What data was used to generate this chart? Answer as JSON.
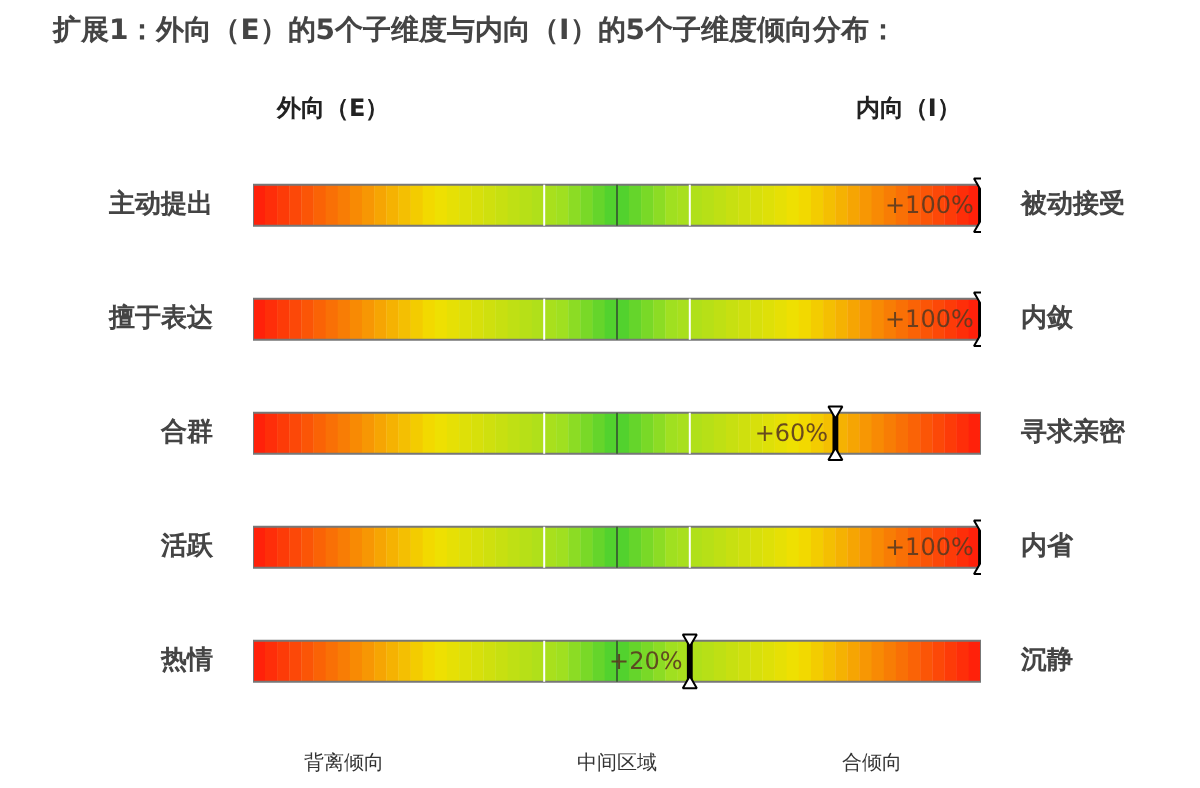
{
  "chart_data": {
    "type": "other",
    "title": "扩展1：外向（E）的5个子维度与内向（I）的5个子维度倾向分布：",
    "categories": [
      "主动提出",
      "擅于表达",
      "合群",
      "活跃",
      "热情"
    ],
    "y2_categories": [
      "被动接受",
      "内敛",
      "寻求亲密",
      "内省",
      "沉静"
    ],
    "values": [
      100,
      100,
      60,
      100,
      20
    ],
    "value_labels": [
      "+100%",
      "+100%",
      "+60%",
      "+100%",
      "+20%"
    ],
    "annotations": [
      "外向（E）",
      "内向（I）",
      "背离倾向",
      "中间区域",
      "合倾向"
    ]
  }
}
